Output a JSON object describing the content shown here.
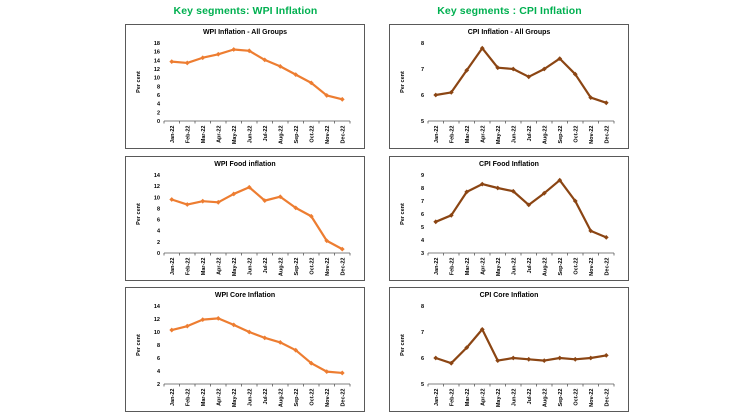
{
  "page": {
    "background": "#ffffff",
    "headers": {
      "wpi": "Key segments: WPI Inflation",
      "cpi": "Key segments : CPI Inflation",
      "color": "#00B050"
    }
  },
  "chart_data": [
    {
      "id": "wpi-all-groups",
      "type": "line",
      "title": "WPI Inflation - All Groups",
      "ylabel": "Per cent",
      "categories": [
        "Jan-22",
        "Feb-22",
        "Mar-22",
        "Apr-22",
        "May-22",
        "Jun-22",
        "Jul-22",
        "Aug-22",
        "Sep-22",
        "Oct-22",
        "Nov-22",
        "Dec-22"
      ],
      "values": [
        13.7,
        13.4,
        14.6,
        15.4,
        16.5,
        16.2,
        14.1,
        12.6,
        10.7,
        8.8,
        5.9,
        5.0
      ],
      "ylim": [
        0,
        18
      ],
      "ytick_step": 2,
      "line_color": "#ED7D31",
      "marker": "diamond",
      "grid": false,
      "legend": "none"
    },
    {
      "id": "wpi-food",
      "type": "line",
      "title": "WPI Food inflation",
      "ylabel": "Per cent",
      "categories": [
        "Jan-22",
        "Feb-22",
        "Mar-22",
        "Apr-22",
        "May-22",
        "Jun-22",
        "Jul-22",
        "Aug-22",
        "Sep-22",
        "Oct-22",
        "Nov-22",
        "Dec-22"
      ],
      "values": [
        9.6,
        8.7,
        9.3,
        9.1,
        10.6,
        11.8,
        9.4,
        10.1,
        8.1,
        6.6,
        2.2,
        0.7
      ],
      "ylim": [
        0,
        14
      ],
      "ytick_step": 2,
      "line_color": "#ED7D31",
      "marker": "diamond",
      "grid": false,
      "legend": "none"
    },
    {
      "id": "wpi-core",
      "type": "line",
      "title": "WPI Core Inflation",
      "ylabel": "Per cent",
      "categories": [
        "Jan-22",
        "Feb-22",
        "Mar-22",
        "Apr-22",
        "May-22",
        "Jun-22",
        "Jul-22",
        "Aug-22",
        "Sep-22",
        "Oct-22",
        "Nov-22",
        "Dec-22"
      ],
      "values": [
        10.3,
        10.9,
        11.9,
        12.1,
        11.1,
        10.0,
        9.1,
        8.4,
        7.2,
        5.2,
        3.9,
        3.7
      ],
      "ylim": [
        2,
        14
      ],
      "ytick_step": 2,
      "line_color": "#ED7D31",
      "marker": "diamond",
      "grid": false,
      "legend": "none"
    },
    {
      "id": "cpi-all-groups",
      "type": "line",
      "title": "CPI Inflation - All Groups",
      "ylabel": "Per cent",
      "categories": [
        "Jan-22",
        "Feb-22",
        "Mar-22",
        "Apr-22",
        "May-22",
        "Jun-22",
        "Jul-22",
        "Aug-22",
        "Sep-22",
        "Oct-22",
        "Nov-22",
        "Dec-22"
      ],
      "values": [
        6.0,
        6.1,
        6.95,
        7.8,
        7.05,
        7.0,
        6.7,
        7.0,
        7.4,
        6.8,
        5.9,
        5.7
      ],
      "ylim": [
        5,
        8
      ],
      "ytick_step": 1,
      "line_color": "#8B4513",
      "marker": "diamond",
      "grid": false,
      "legend": "none"
    },
    {
      "id": "cpi-food",
      "type": "line",
      "title": "CPI Food Inflation",
      "ylabel": "Per cent",
      "categories": [
        "Jan-22",
        "Feb-22",
        "Mar-22",
        "Apr-22",
        "May-22",
        "Jun-22",
        "Jul-22",
        "Aug-22",
        "Sep-22",
        "Oct-22",
        "Nov-22",
        "Dec-22"
      ],
      "values": [
        5.4,
        5.9,
        7.7,
        8.3,
        8.0,
        7.75,
        6.7,
        7.6,
        8.6,
        7.0,
        4.7,
        4.2
      ],
      "ylim": [
        3,
        9
      ],
      "ytick_step": 1,
      "line_color": "#8B4513",
      "marker": "diamond",
      "grid": false,
      "legend": "none"
    },
    {
      "id": "cpi-core",
      "type": "line",
      "title": "CPI Core Inflation",
      "ylabel": "Per cent",
      "categories": [
        "Jan-22",
        "Feb-22",
        "Mar-22",
        "Apr-22",
        "May-22",
        "Jun-22",
        "Jul-22",
        "Aug-22",
        "Sep-22",
        "Oct-22",
        "Nov-22",
        "Dec-22"
      ],
      "values": [
        6.0,
        5.8,
        6.4,
        7.1,
        5.9,
        6.0,
        5.95,
        5.9,
        6.0,
        5.95,
        6.0,
        6.1
      ],
      "ylim": [
        5,
        8
      ],
      "ytick_step": 1,
      "line_color": "#8B4513",
      "marker": "diamond",
      "grid": false,
      "legend": "none"
    }
  ]
}
